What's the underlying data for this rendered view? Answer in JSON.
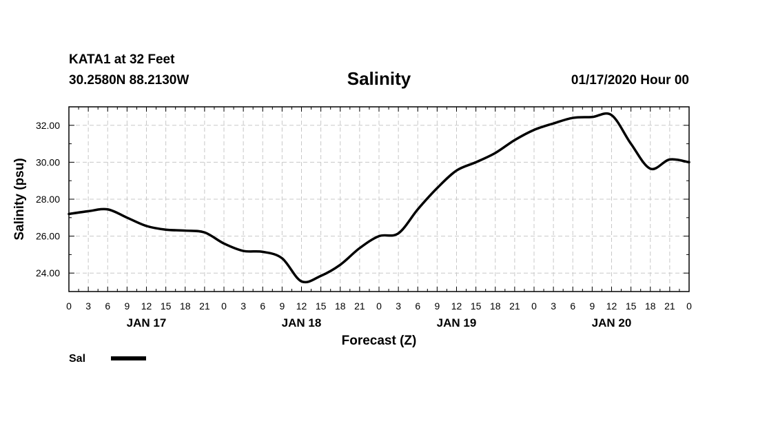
{
  "header": {
    "station": "KATA1 at 32 Feet",
    "coords": "30.2580N 88.2130W",
    "datetime": "01/17/2020 Hour 00"
  },
  "legend": {
    "label": "Sal",
    "color": "#000000"
  },
  "chart_data": {
    "type": "line",
    "title": "Salinity",
    "xlabel": "Forecast (Z)",
    "ylabel": "Salinity (psu)",
    "xlim": [
      0,
      96
    ],
    "ylim": [
      23,
      33
    ],
    "yticks": [
      24,
      26,
      28,
      30,
      32
    ],
    "ytick_labels": [
      "24.00",
      "26.00",
      "28.00",
      "30.00",
      "32.00"
    ],
    "xtick_hours": [
      0,
      3,
      6,
      9,
      12,
      15,
      18,
      21,
      24,
      27,
      30,
      33,
      36,
      39,
      42,
      45,
      48,
      51,
      54,
      57,
      60,
      63,
      66,
      69,
      72,
      75,
      78,
      81,
      84,
      87,
      90,
      93,
      96
    ],
    "xtick_labels": [
      "0",
      "3",
      "6",
      "9",
      "12",
      "15",
      "18",
      "21",
      "0",
      "3",
      "6",
      "9",
      "12",
      "15",
      "18",
      "21",
      "0",
      "3",
      "6",
      "9",
      "12",
      "15",
      "18",
      "21",
      "0",
      "3",
      "6",
      "9",
      "12",
      "15",
      "18",
      "21",
      "0"
    ],
    "day_labels": [
      {
        "hour": 12,
        "label": "JAN 17"
      },
      {
        "hour": 36,
        "label": "JAN 18"
      },
      {
        "hour": 60,
        "label": "JAN 19"
      },
      {
        "hour": 84,
        "label": "JAN 20"
      }
    ],
    "grid": true,
    "series": [
      {
        "name": "Sal",
        "color": "#000000",
        "x": [
          0,
          3,
          6,
          9,
          12,
          15,
          18,
          21,
          24,
          27,
          30,
          33,
          36,
          39,
          42,
          45,
          48,
          51,
          54,
          57,
          60,
          63,
          66,
          69,
          72,
          75,
          78,
          81,
          84,
          87,
          90,
          93,
          96
        ],
        "y": [
          27.2,
          27.35,
          27.45,
          27.0,
          26.55,
          26.35,
          26.3,
          26.2,
          25.6,
          25.2,
          25.15,
          24.8,
          23.55,
          23.85,
          24.45,
          25.35,
          26.0,
          26.15,
          27.45,
          28.6,
          29.55,
          30.0,
          30.5,
          31.2,
          31.75,
          32.1,
          32.4,
          32.45,
          32.55,
          31.0,
          29.65,
          30.15,
          30.0
        ]
      }
    ]
  }
}
